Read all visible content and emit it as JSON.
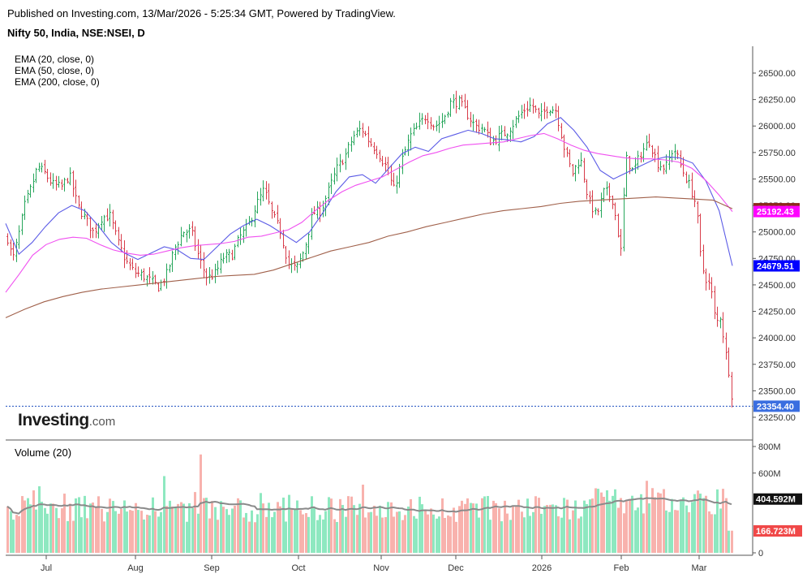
{
  "header": {
    "published": "Published on Investing.com, 13/Mar/2026 - 5:25:34 GMT, Powered by TradingView.",
    "symbol": "Nifty 50, India, NSE:NSEI, D"
  },
  "indicators": [
    "EMA (20, close, 0)",
    "EMA (50, close, 0)",
    "EMA (200, close, 0)"
  ],
  "logo": {
    "name": "Investing",
    "suffix": ".com"
  },
  "colors": {
    "up": "#26a65b",
    "down": "#d83c4a",
    "ema20": "#5b5be6",
    "ema50": "#f050f0",
    "ema200": "#a0604a",
    "vol_up": "#8ee8c0",
    "vol_down": "#f8b2ad",
    "vol_ma": "#8a8a8a"
  },
  "chart_data": [
    {
      "type": "ohlc",
      "title": "Nifty 50, India, NSE:NSEI, D",
      "y_ticks": [
        "26500.00",
        "26250.00",
        "26000.00",
        "25750.00",
        "25500.00",
        "25250.00",
        "25000.00",
        "24750.00",
        "24500.00",
        "24250.00",
        "24000.00",
        "23750.00",
        "23500.00",
        "23250.00"
      ],
      "ylim": [
        23150,
        26700
      ],
      "x_ticks": [
        "Jul",
        "Aug",
        "Sep",
        "Oct",
        "Nov",
        "Dec",
        "2026",
        "Feb",
        "Mar"
      ],
      "last_close": 23354.4,
      "series": [
        {
          "name": "EMA (20, close, 0)",
          "last": 24679.51,
          "label": "24679.51",
          "color": "#0000ff",
          "points": [
            25080,
            24790,
            24900,
            25050,
            25180,
            25250,
            25200,
            25060,
            24900,
            24800,
            24740,
            24800,
            24860,
            24830,
            24750,
            24740,
            24860,
            24980,
            25060,
            25120,
            25060,
            24980,
            24900,
            25000,
            25180,
            25380,
            25520,
            25540,
            25460,
            25600,
            25740,
            25800,
            25760,
            25880,
            25920,
            25960,
            25930,
            25880,
            25870,
            25850,
            25900,
            26020,
            26080,
            25960,
            25800,
            25580,
            25500,
            25560,
            25620,
            25680,
            25710,
            25700,
            25650,
            25480,
            25200,
            24680
          ]
        },
        {
          "name": "EMA (50, close, 0)",
          "last": 25192.43,
          "label": "25192.43",
          "color": "#ff00ff",
          "points": [
            24430,
            24600,
            24780,
            24880,
            24930,
            24950,
            24940,
            24880,
            24830,
            24800,
            24780,
            24790,
            24820,
            24850,
            24870,
            24880,
            24890,
            24910,
            24950,
            24960,
            24990,
            25020,
            25090,
            25200,
            25300,
            25380,
            25440,
            25480,
            25520,
            25590,
            25660,
            25720,
            25750,
            25790,
            25820,
            25830,
            25840,
            25850,
            25880,
            25910,
            25930,
            25880,
            25820,
            25770,
            25740,
            25720,
            25700,
            25690,
            25690,
            25680,
            25660,
            25600,
            25490,
            25350,
            25192
          ]
        },
        {
          "name": "EMA (200, close, 0)",
          "last": 25219.26,
          "label": "25219.26",
          "color": "#8b2a1a",
          "points": [
            24190,
            24270,
            24340,
            24390,
            24430,
            24460,
            24480,
            24500,
            24520,
            24540,
            24560,
            24580,
            24590,
            24600,
            24640,
            24700,
            24760,
            24820,
            24860,
            24900,
            24960,
            25000,
            25050,
            25090,
            25130,
            25170,
            25200,
            25220,
            25240,
            25270,
            25290,
            25300,
            25310,
            25320,
            25330,
            25320,
            25310,
            25300,
            25219
          ]
        }
      ]
    },
    {
      "type": "bar",
      "title": "Volume (20)",
      "y_ticks": [
        "800M",
        "600M",
        "0"
      ],
      "ylim": [
        0,
        800
      ],
      "unit": "M",
      "ma_last": 404.592,
      "ma_label": "404.592M",
      "last": 166.723,
      "last_label": "166.723M"
    }
  ]
}
